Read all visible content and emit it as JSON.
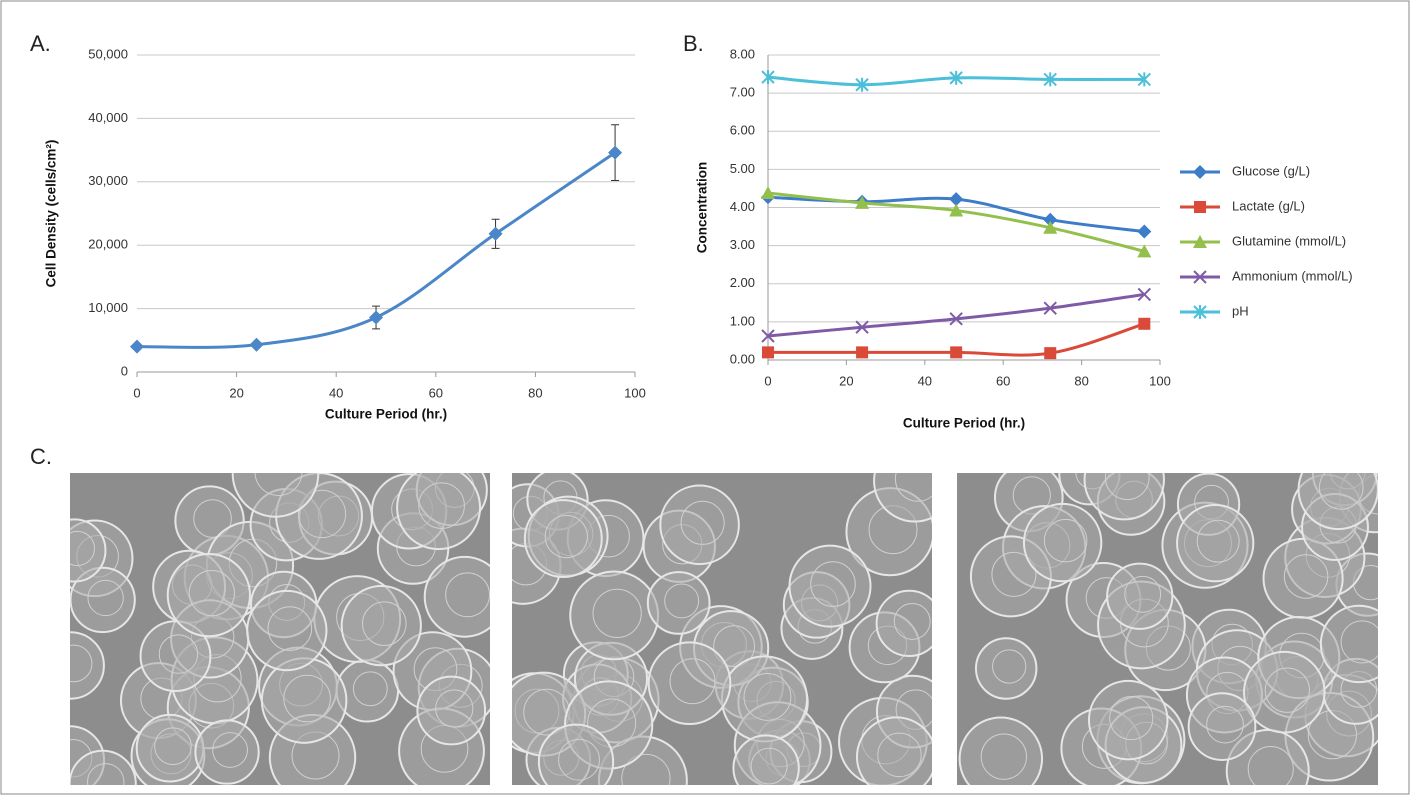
{
  "chart_data": [
    {
      "type": "line",
      "panel_label": "A.",
      "x_label": "Culture Period (hr.)",
      "y_label": "Cell Density (cells/cm²)",
      "x": [
        0,
        24,
        48,
        72,
        96
      ],
      "values": [
        4000,
        4300,
        8600,
        21800,
        34600
      ],
      "errors": [
        200,
        300,
        1800,
        2300,
        4400
      ],
      "color": "#4a86c8",
      "xlim": [
        0,
        100
      ],
      "xticks": [
        0,
        20,
        40,
        60,
        80,
        100
      ],
      "ylim": [
        0,
        50000
      ],
      "yticks": [
        0,
        {
          "value": 10000,
          "label": "10,000"
        },
        {
          "value": 20000,
          "label": "20,000"
        },
        {
          "value": 30000,
          "label": "30,000"
        },
        {
          "value": 40000,
          "label": "40,000"
        },
        {
          "value": 50000,
          "label": "50,000"
        }
      ],
      "grid": true
    },
    {
      "type": "line",
      "panel_label": "B.",
      "x_label": "Culture Period (hr.)",
      "y_label": "Concentration",
      "x": [
        0,
        24,
        48,
        72,
        96
      ],
      "series": [
        {
          "name": "Glucose (g/L)",
          "color": "#3d7cc9",
          "marker": "diamond",
          "values": [
            4.27,
            4.15,
            4.22,
            3.68,
            3.37
          ]
        },
        {
          "name": "Lactate (g/L)",
          "color": "#d94a38",
          "marker": "square",
          "values": [
            0.2,
            0.2,
            0.2,
            0.18,
            0.95
          ]
        },
        {
          "name": "Glutamine (mmol/L)",
          "color": "#93bf4c",
          "marker": "triangle",
          "values": [
            4.38,
            4.12,
            3.92,
            3.47,
            2.85
          ]
        },
        {
          "name": "Ammonium (mmol/L)",
          "color": "#7f5ba6",
          "marker": "x",
          "values": [
            0.63,
            0.86,
            1.08,
            1.36,
            1.72
          ]
        },
        {
          "name": "pH",
          "color": "#4cbfd9",
          "marker": "star",
          "values": [
            7.42,
            7.22,
            7.4,
            7.36,
            7.36
          ]
        }
      ],
      "xlim": [
        0,
        100
      ],
      "xticks": [
        0,
        20,
        40,
        60,
        80,
        100
      ],
      "ylim": [
        0,
        8
      ],
      "yticks": [
        {
          "value": 0,
          "label": "0.00"
        },
        {
          "value": 1,
          "label": "1.00"
        },
        {
          "value": 2,
          "label": "2.00"
        },
        {
          "value": 3,
          "label": "3.00"
        },
        {
          "value": 4,
          "label": "4.00"
        },
        {
          "value": 5,
          "label": "5.00"
        },
        {
          "value": 6,
          "label": "6.00"
        },
        {
          "value": 7,
          "label": "7.00"
        },
        {
          "value": 8,
          "label": "8.00"
        }
      ],
      "grid": true,
      "legend": "right"
    }
  ],
  "panel_c": {
    "label": "C."
  }
}
